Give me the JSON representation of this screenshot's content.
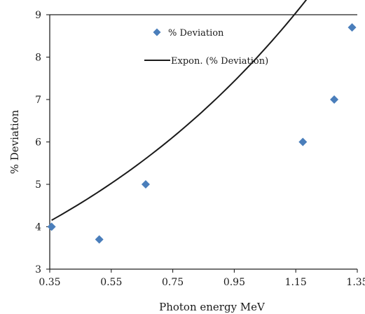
{
  "chart_data": {
    "type": "scatter",
    "xlabel": "Photon energy MeV",
    "ylabel": "% Deviation",
    "xlim": [
      0.35,
      1.35
    ],
    "ylim": [
      3,
      9
    ],
    "x_ticks": [
      "0.35",
      "0.55",
      "0.75",
      "0.95",
      "1.15",
      "1.35"
    ],
    "y_ticks": [
      "3",
      "4",
      "5",
      "6",
      "7",
      "8",
      "9"
    ],
    "grid": false,
    "legend_position": "top-right",
    "series": [
      {
        "name": "% Deviation",
        "kind": "scatter",
        "marker": "diamond",
        "color": "#4a7ebb",
        "x": [
          0.356,
          0.511,
          0.662,
          1.173,
          1.275,
          1.333
        ],
        "y": [
          4.0,
          3.7,
          5.0,
          6.0,
          7.0,
          8.7
        ]
      },
      {
        "name": "Expon. (% Deviation)",
        "kind": "trendline",
        "fit": "exponential",
        "color": "#1a1a1a",
        "x_range": [
          0.356,
          1.333
        ],
        "a": 2.93,
        "b": 0.98
      }
    ]
  }
}
